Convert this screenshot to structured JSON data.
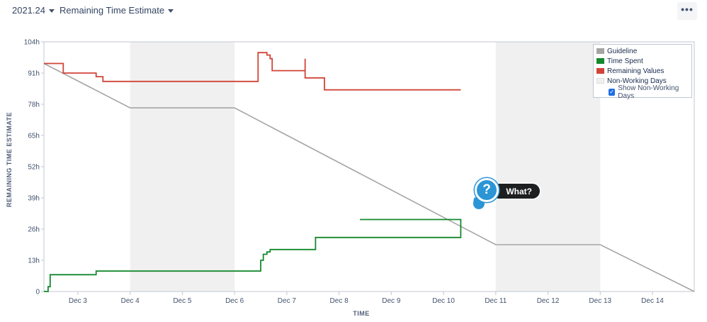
{
  "toolbar": {
    "sprint_label": "2021.24",
    "report_label": "Remaining Time Estimate",
    "more_label": "•••"
  },
  "help_badge": {
    "icon_glyph": "?",
    "label": "What?"
  },
  "legend": {
    "items": [
      {
        "label": "Guideline",
        "color": "#a5a5a5"
      },
      {
        "label": "Time Spent",
        "color": "#14892c"
      },
      {
        "label": "Remaining Values",
        "color": "#d04437"
      },
      {
        "label": "Non-Working Days",
        "color": "#f0f0f0"
      }
    ],
    "checkbox_label": "Show Non-Working Days",
    "checkbox_checked": true
  },
  "chart_data": {
    "type": "line",
    "title": "",
    "xlabel": "TIME",
    "ylabel": "REMAINING TIME ESTIMATE",
    "x_unit": "days (Dec 2021)",
    "xlim": [
      2.35,
      14.8
    ],
    "ylim": [
      0,
      104
    ],
    "x_ticks": [
      {
        "x": 3,
        "label": "Dec 3"
      },
      {
        "x": 4,
        "label": "Dec 4"
      },
      {
        "x": 5,
        "label": "Dec 5"
      },
      {
        "x": 6,
        "label": "Dec 6"
      },
      {
        "x": 7,
        "label": "Dec 7"
      },
      {
        "x": 8,
        "label": "Dec 8"
      },
      {
        "x": 9,
        "label": "Dec 9"
      },
      {
        "x": 10,
        "label": "Dec 10"
      },
      {
        "x": 11,
        "label": "Dec 11"
      },
      {
        "x": 12,
        "label": "Dec 12"
      },
      {
        "x": 13,
        "label": "Dec 13"
      },
      {
        "x": 14,
        "label": "Dec 14"
      }
    ],
    "y_ticks": [
      {
        "y": 0,
        "label": "0"
      },
      {
        "y": 13,
        "label": "13h"
      },
      {
        "y": 26,
        "label": "26h"
      },
      {
        "y": 39,
        "label": "39h"
      },
      {
        "y": 52,
        "label": "52h"
      },
      {
        "y": 65,
        "label": "65h"
      },
      {
        "y": 78,
        "label": "78h"
      },
      {
        "y": 91,
        "label": "91h"
      },
      {
        "y": 104,
        "label": "104h"
      }
    ],
    "non_working_days": [
      [
        4,
        6
      ],
      [
        11,
        13
      ]
    ],
    "series": [
      {
        "name": "Guideline",
        "color": "#a5a5a5",
        "points": [
          [
            2.35,
            95
          ],
          [
            4,
            76.5
          ],
          [
            6,
            76.5
          ],
          [
            11,
            19.5
          ],
          [
            13,
            19.5
          ],
          [
            14.8,
            0
          ]
        ]
      },
      {
        "name": "Remaining Values",
        "color": "#d04437",
        "points": [
          [
            2.35,
            95
          ],
          [
            2.72,
            95
          ],
          [
            2.72,
            91
          ],
          [
            3.35,
            91
          ],
          [
            3.35,
            89.5
          ],
          [
            3.48,
            89.5
          ],
          [
            3.48,
            87.5
          ],
          [
            6.45,
            87.5
          ],
          [
            6.45,
            99.5
          ],
          [
            6.62,
            99.5
          ],
          [
            6.62,
            98.5
          ],
          [
            6.68,
            98.5
          ],
          [
            6.68,
            97
          ],
          [
            6.72,
            97
          ],
          [
            6.72,
            92
          ],
          [
            7.35,
            92
          ],
          [
            7.35,
            97
          ],
          [
            7.35,
            89
          ],
          [
            7.72,
            89
          ],
          [
            7.72,
            84
          ],
          [
            10.33,
            84
          ]
        ]
      },
      {
        "name": "Time Spent",
        "color": "#14892c",
        "points": [
          [
            2.35,
            0
          ],
          [
            2.43,
            0
          ],
          [
            2.43,
            2
          ],
          [
            2.47,
            2
          ],
          [
            2.47,
            7
          ],
          [
            3.35,
            7
          ],
          [
            3.35,
            8.5
          ],
          [
            6.5,
            8.5
          ],
          [
            6.5,
            13
          ],
          [
            6.55,
            13
          ],
          [
            6.55,
            15.5
          ],
          [
            6.62,
            15.5
          ],
          [
            6.62,
            16.5
          ],
          [
            6.68,
            16.5
          ],
          [
            6.68,
            17.5
          ],
          [
            7.55,
            17.5
          ],
          [
            7.55,
            22.5
          ],
          [
            10.33,
            22.5
          ],
          [
            10.33,
            30
          ],
          [
            8.4,
            30
          ]
        ]
      }
    ],
    "grid": {
      "x": false,
      "y": false
    },
    "legend_position": "top-right"
  }
}
